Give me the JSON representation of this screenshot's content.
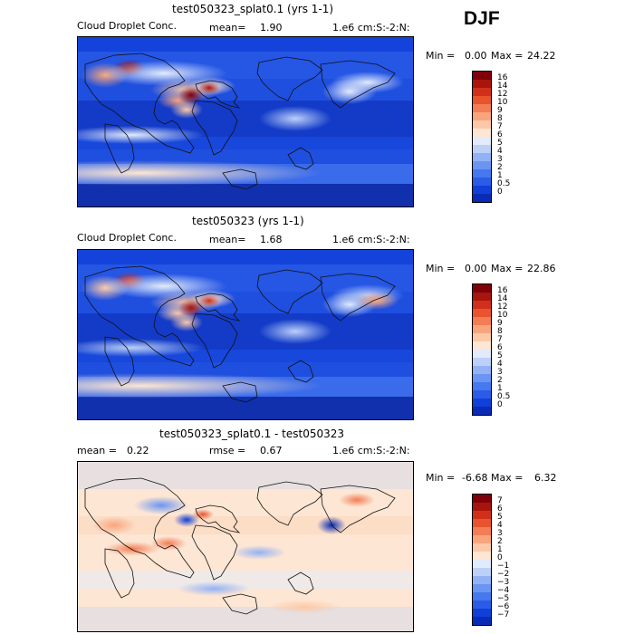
{
  "season": "DJF",
  "colors": {
    "seq": [
      "#081d8c",
      "#0a2bb5",
      "#1040d8",
      "#2a5ce8",
      "#4678ee",
      "#6b95f2",
      "#93b2f5",
      "#bcd0f8",
      "#e2ebfb",
      "#fde6d3",
      "#fcc9a8",
      "#f8a57c",
      "#f37d55",
      "#e8542d",
      "#d0301a",
      "#a8150d",
      "#80000a"
    ],
    "diff": [
      "#081d8c",
      "#0a2bb5",
      "#1040d8",
      "#2a5ce8",
      "#4678ee",
      "#6b95f2",
      "#93b2f5",
      "#bcd0f8",
      "#e2ebfb",
      "#fde6d3",
      "#fcc9a8",
      "#f8a57c",
      "#f37d55",
      "#e8542d",
      "#d0301a",
      "#a8150d",
      "#80000a"
    ]
  },
  "chart_data": [
    {
      "type": "heatmap",
      "title": "test050323_splat0.1 (yrs 1-1)",
      "variable": "Cloud Droplet Conc.",
      "stat_label": "mean=",
      "stat_value": "1.90",
      "units": "1.e6 cm:S:-2:N:",
      "min_label": "Min =",
      "min_value": "0.00",
      "max_label": "Max =",
      "max_value": "24.22",
      "colorbar_labels": [
        "16",
        "14",
        "12",
        "10",
        "9",
        "8",
        "7",
        "6",
        "5",
        "4",
        "3",
        "2",
        "1",
        "0.5",
        "0"
      ],
      "colorbar_levels": [
        0,
        0.5,
        1,
        2,
        3,
        4,
        5,
        6,
        7,
        8,
        9,
        10,
        12,
        14,
        16
      ]
    },
    {
      "type": "heatmap",
      "title": "test050323 (yrs 1-1)",
      "variable": "Cloud Droplet Conc.",
      "stat_label": "mean=",
      "stat_value": "1.68",
      "units": "1.e6 cm:S:-2:N:",
      "min_label": "Min =",
      "min_value": "0.00",
      "max_label": "Max =",
      "max_value": "22.86",
      "colorbar_labels": [
        "16",
        "14",
        "12",
        "10",
        "9",
        "8",
        "7",
        "6",
        "5",
        "4",
        "3",
        "2",
        "1",
        "0.5",
        "0"
      ],
      "colorbar_levels": [
        0,
        0.5,
        1,
        2,
        3,
        4,
        5,
        6,
        7,
        8,
        9,
        10,
        12,
        14,
        16
      ]
    },
    {
      "type": "heatmap",
      "title": "test050323_splat0.1 - test050323",
      "stat_label": "mean =",
      "stat_value": "0.22",
      "stat2_label": "rmse =",
      "stat2_value": "0.67",
      "units": "1.e6 cm:S:-2:N:",
      "min_label": "Min =",
      "min_value": "-6.68",
      "max_label": "Max =",
      "max_value": "6.32",
      "colorbar_labels": [
        "7",
        "6",
        "5",
        "4",
        "3",
        "2",
        "1",
        "0",
        "−1",
        "−2",
        "−3",
        "−4",
        "−5",
        "−6",
        "−7"
      ],
      "colorbar_levels": [
        -7,
        -6,
        -5,
        -4,
        -3,
        -2,
        -1,
        0,
        1,
        2,
        3,
        4,
        5,
        6,
        7
      ]
    }
  ]
}
